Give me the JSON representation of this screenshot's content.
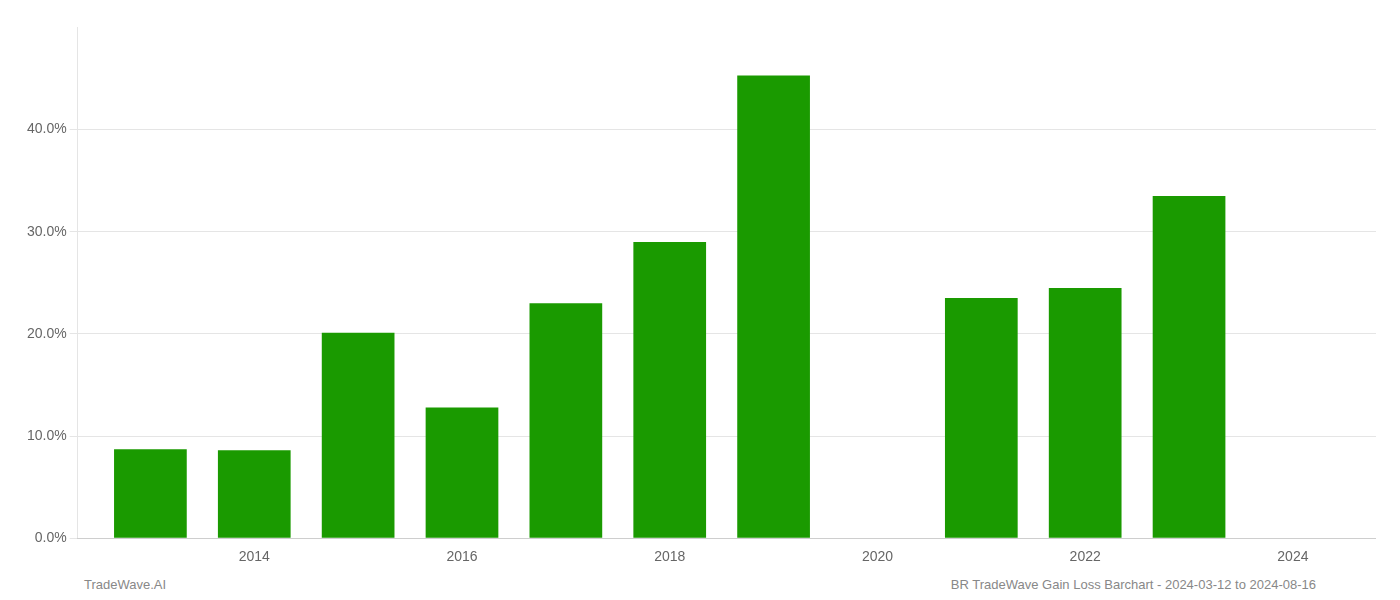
{
  "chart_data": {
    "type": "bar",
    "x": [
      2013,
      2014,
      2015,
      2016,
      2017,
      2018,
      2019,
      2021,
      2022,
      2023
    ],
    "values": [
      0.087,
      0.086,
      0.201,
      0.128,
      0.23,
      0.29,
      0.453,
      0.235,
      0.245,
      0.335
    ],
    "color": "#1a9a00",
    "xlim": [
      2012.3,
      2024.8
    ],
    "xticks": [
      2014,
      2016,
      2018,
      2020,
      2022,
      2024
    ],
    "ylim": [
      0,
      0.5
    ],
    "yticks": [
      {
        "value": 0.0,
        "label": "0.0%"
      },
      {
        "value": 0.1,
        "label": "10.0%"
      },
      {
        "value": 0.2,
        "label": "20.0%"
      },
      {
        "value": 0.3,
        "label": "30.0%"
      },
      {
        "value": 0.4,
        "label": "40.0%"
      }
    ],
    "grid": "y",
    "annotations": [
      "TradeWave.AI",
      "BR TradeWave Gain Loss Barchart - 2024-03-12 to 2024-08-16"
    ]
  }
}
